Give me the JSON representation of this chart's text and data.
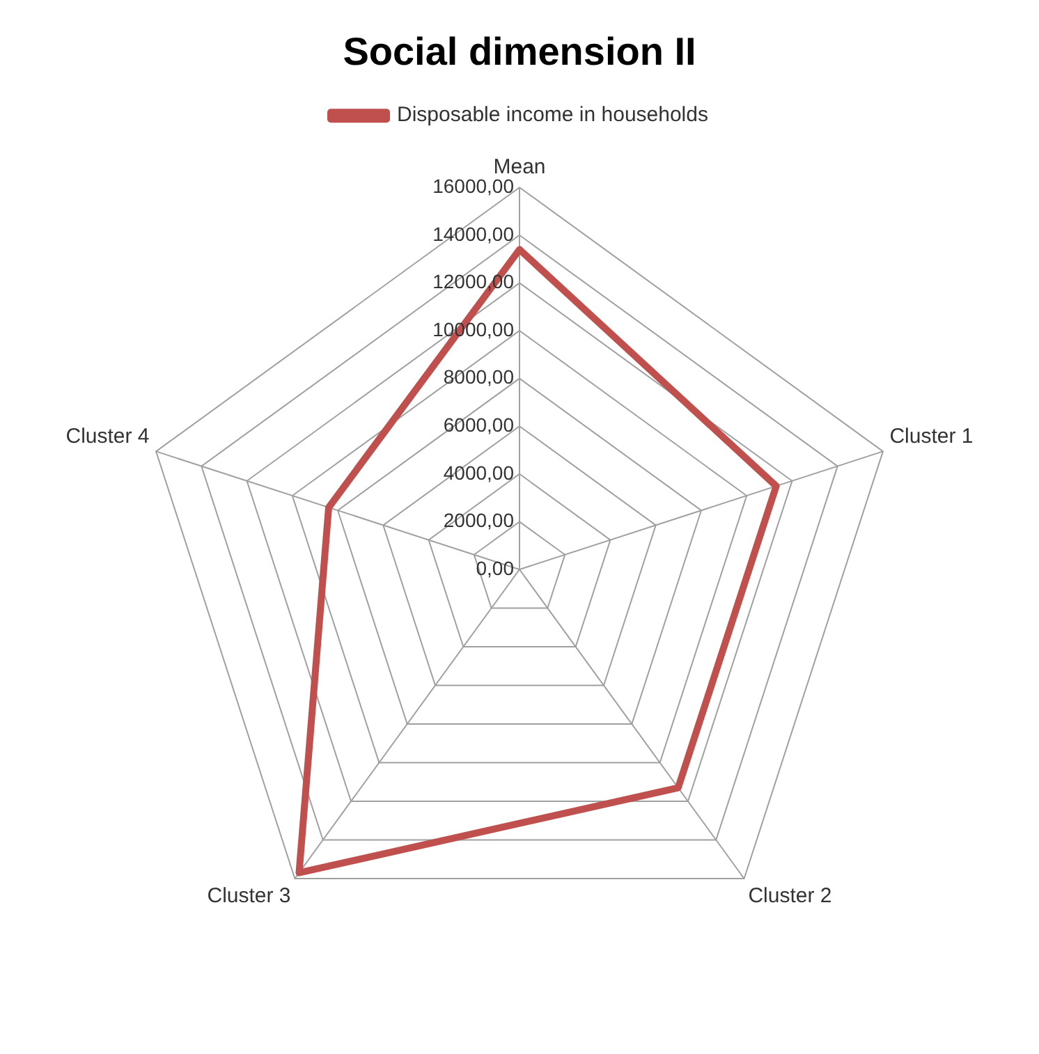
{
  "chart_data": {
    "type": "radar",
    "title": "Social dimension II",
    "categories": [
      "Mean",
      "Cluster 1",
      "Cluster 2",
      "Cluster 3",
      "Cluster 4"
    ],
    "series": [
      {
        "name": "Disposable income in households",
        "color": "#c0504d",
        "values": [
          13400,
          11300,
          11300,
          15700,
          8400
        ]
      }
    ],
    "ylim": [
      0,
      16000
    ],
    "yticks": [
      {
        "value": 0,
        "label": "0,00"
      },
      {
        "value": 2000,
        "label": "2000,00"
      },
      {
        "value": 4000,
        "label": "4000,00"
      },
      {
        "value": 6000,
        "label": "6000,00"
      },
      {
        "value": 8000,
        "label": "8000,00"
      },
      {
        "value": 10000,
        "label": "10000,00"
      },
      {
        "value": 12000,
        "label": "12000,00"
      },
      {
        "value": 14000,
        "label": "14000,00"
      },
      {
        "value": 16000,
        "label": "16000,00"
      }
    ],
    "grid": true,
    "legend": "top",
    "marker": "none",
    "line_style": "solid"
  }
}
